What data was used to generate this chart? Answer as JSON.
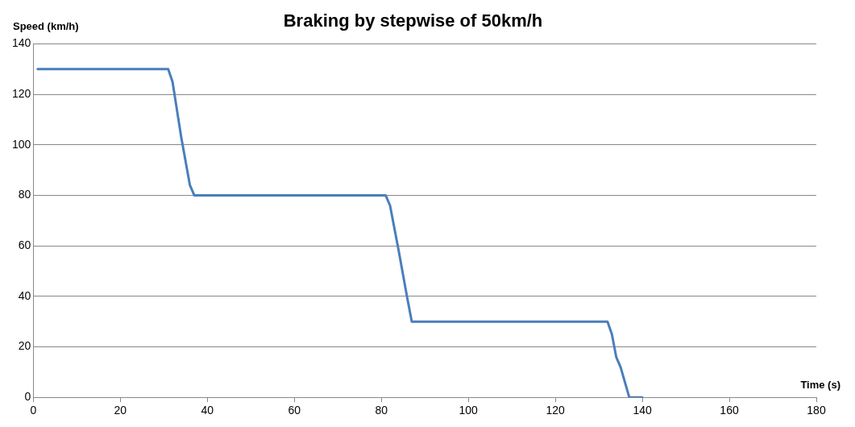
{
  "chart_data": {
    "type": "line",
    "title": "Braking by stepwise of 50km/h",
    "xlabel": "Time (s)",
    "ylabel": "Speed (km/h)",
    "series": [
      {
        "color": "#4a7ebb",
        "x": [
          1,
          30,
          31,
          32,
          34,
          36,
          37,
          38,
          80,
          81,
          82,
          84,
          86,
          87,
          88,
          131,
          132,
          133,
          134,
          135,
          136,
          137,
          138,
          140
        ],
        "values": [
          130,
          130,
          130,
          125,
          103,
          84,
          80,
          80,
          80,
          80,
          76,
          58,
          39,
          30,
          30,
          30,
          30,
          25,
          16,
          12,
          6,
          0,
          0,
          0
        ]
      }
    ],
    "xlim": [
      0,
      180
    ],
    "xticks": [
      0,
      20,
      40,
      60,
      80,
      100,
      120,
      140,
      160,
      180
    ],
    "ylim": [
      0,
      140
    ],
    "yticks": [
      0,
      20,
      40,
      60,
      80,
      100,
      120,
      140
    ],
    "grid": "y",
    "legend": false,
    "marker": "none",
    "line_style": "solid"
  }
}
